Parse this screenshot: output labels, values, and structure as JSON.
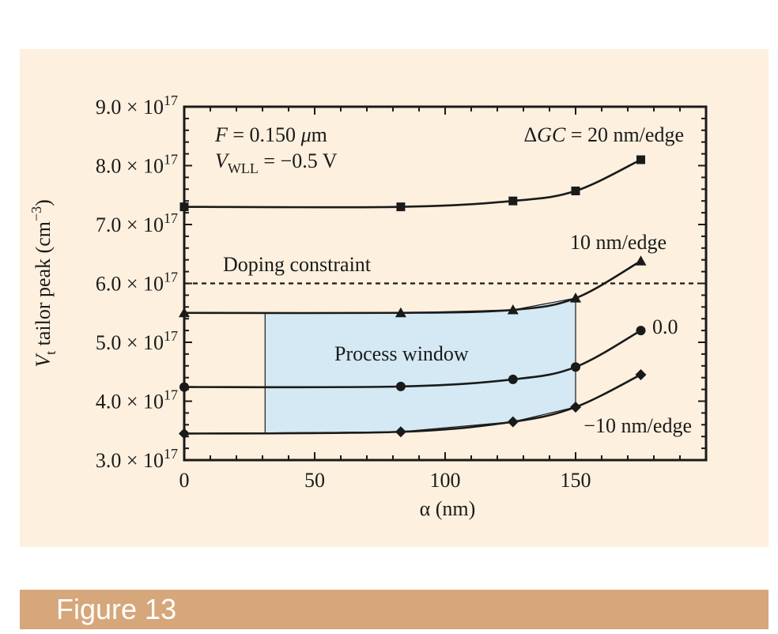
{
  "colors": {
    "panel_background": "#fdf0de",
    "caption_background": "#d6a77a",
    "caption_text": "#ffffff",
    "process_window_fill": "#d4e9f3",
    "ink": "#1a1a1a"
  },
  "caption": {
    "label": "Figure 13"
  },
  "chart_data": {
    "type": "line",
    "title": "",
    "xlabel": "α  (nm)",
    "ylabel_main": "V",
    "ylabel_sub": "t",
    "ylabel_rest": " tailor peak  (cm",
    "ylabel_exp": "−3",
    "ylabel_end": ")",
    "xlim": [
      0,
      200
    ],
    "ylim": [
      3e+17,
      9e+17
    ],
    "x_ticks": [
      0,
      50,
      100,
      150
    ],
    "x_tick_labels": [
      "0",
      "50",
      "100",
      "150"
    ],
    "y_ticks": [
      3e+17,
      4e+17,
      5e+17,
      6e+17,
      7e+17,
      8e+17,
      9e+17
    ],
    "y_tick_mantissas": [
      "3.0",
      "4.0",
      "5.0",
      "6.0",
      "7.0",
      "8.0",
      "9.0"
    ],
    "y_tick_times": "×",
    "y_tick_base": "10",
    "y_tick_exponent": "17",
    "annotations": {
      "f_label": "F",
      "f_value": " = 0.150 ",
      "f_mu": "μ",
      "f_unit": "m",
      "v_label": "V",
      "v_sub": "WLL",
      "v_value": " = −0.5 V",
      "gc_delta": "Δ",
      "gc_label": "GC",
      "gc_value": " = 20 nm/edge",
      "doping_constraint": "Doping constraint",
      "process_window": "Process window"
    },
    "doping_constraint_y": 6e+17,
    "process_window": {
      "x_range": [
        31,
        150
      ]
    },
    "series": [
      {
        "label": "",
        "marker": "square",
        "x": [
          0,
          83,
          126,
          150,
          175
        ],
        "y": [
          7.3e+17,
          7.3e+17,
          7.4e+17,
          7.57e+17,
          8.1e+17
        ]
      },
      {
        "label": "10 nm/edge",
        "marker": "triangle",
        "x": [
          0,
          83,
          126,
          150,
          175
        ],
        "y": [
          5.5e+17,
          5.5e+17,
          5.55e+17,
          5.75e+17,
          6.38e+17
        ]
      },
      {
        "label": "0.0",
        "marker": "circle",
        "x": [
          0,
          83,
          126,
          150,
          175
        ],
        "y": [
          4.24e+17,
          4.25e+17,
          4.37e+17,
          4.58e+17,
          5.2e+17
        ]
      },
      {
        "label": "−10 nm/edge",
        "marker": "diamond",
        "x": [
          0,
          83,
          126,
          150,
          175
        ],
        "y": [
          3.45e+17,
          3.48e+17,
          3.65e+17,
          3.9e+17,
          4.45e+17
        ]
      }
    ]
  }
}
